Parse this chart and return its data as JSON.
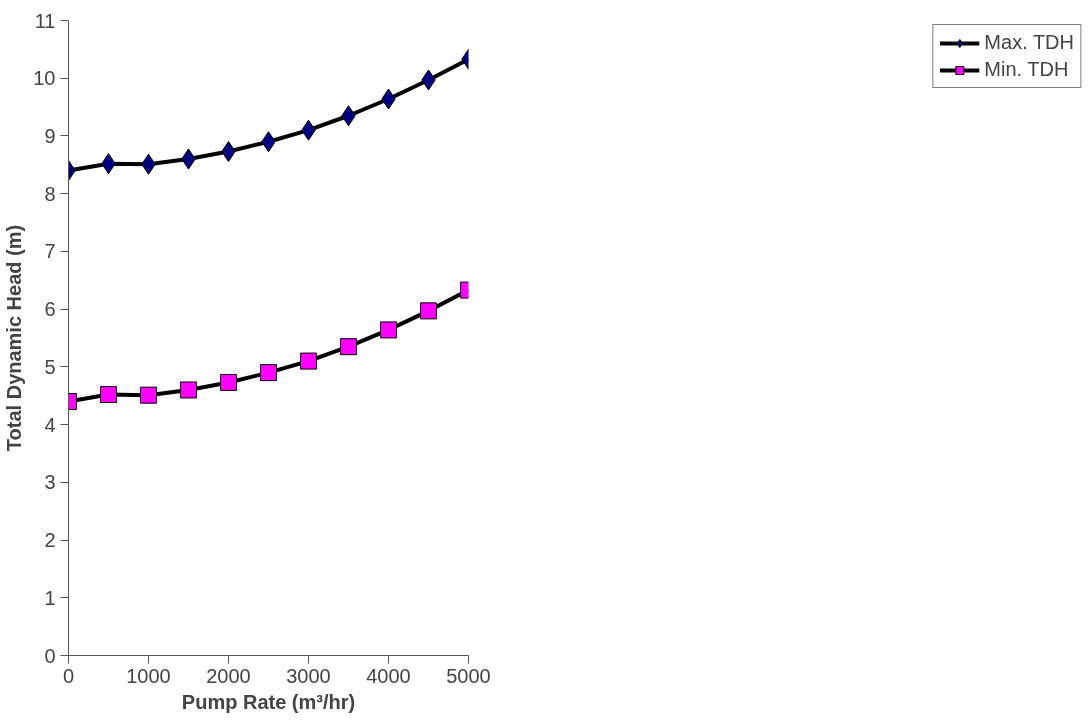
{
  "chart_data": {
    "type": "line",
    "xlabel": "Pump Rate (m³/hr)",
    "ylabel": "Total Dynamic Head (m)",
    "x": [
      0,
      500,
      1000,
      1500,
      2000,
      2500,
      3000,
      3500,
      4000,
      4500,
      5000
    ],
    "xlim": [
      0,
      5000
    ],
    "xticks": [
      0,
      1000,
      2000,
      3000,
      4000,
      5000
    ],
    "ylim": [
      0,
      11
    ],
    "yticks": [
      0,
      1,
      2,
      3,
      4,
      5,
      6,
      7,
      8,
      9,
      10,
      11
    ],
    "grid": false,
    "legend": "right",
    "line_style": "solid",
    "series": [
      {
        "name": "Max. TDH",
        "color": "#000080",
        "marker": "diamond",
        "values": [
          8.4,
          8.52,
          8.51,
          8.6,
          8.73,
          8.9,
          9.1,
          9.35,
          9.64,
          9.97,
          10.33
        ]
      },
      {
        "name": "Min. TDH",
        "color": "#ff00ff",
        "marker": "square",
        "values": [
          4.4,
          4.52,
          4.51,
          4.6,
          4.73,
          4.9,
          5.1,
          5.35,
          5.64,
          5.97,
          6.33
        ]
      }
    ]
  }
}
